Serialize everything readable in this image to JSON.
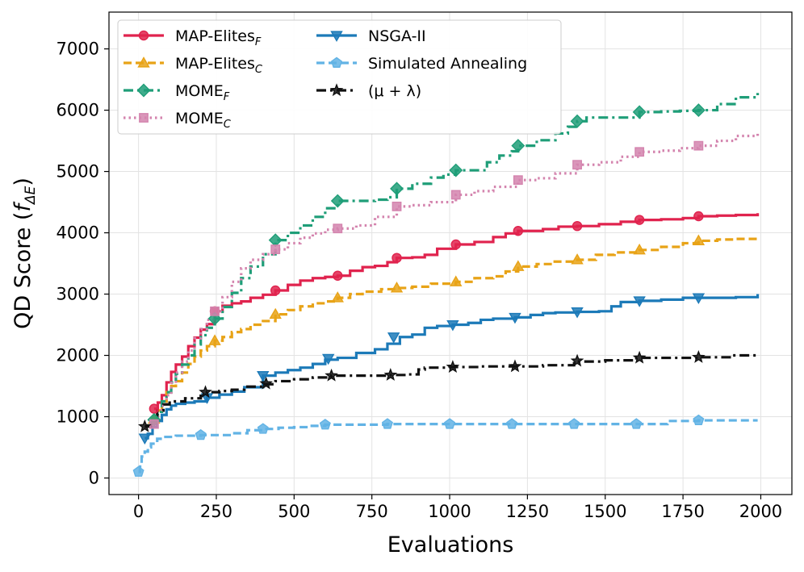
{
  "chart_data": {
    "type": "line",
    "title": "",
    "xlabel": "Evaluations",
    "ylabel_main": "QD Score (",
    "ylabel_func": "f",
    "ylabel_sub": "ΔE",
    "ylabel_close": ")",
    "xlim": [
      -95,
      2100
    ],
    "ylim": [
      -270,
      7600
    ],
    "xticks": [
      0,
      250,
      500,
      750,
      1000,
      1250,
      1500,
      1750,
      2000
    ],
    "yticks": [
      0,
      1000,
      2000,
      3000,
      4000,
      5000,
      6000,
      7000
    ],
    "grid": true,
    "legend_position": "top-left",
    "series": [
      {
        "name": "MAP-Elites",
        "name_sub": "F",
        "color": "#e0234e",
        "dash": "solid",
        "marker": "circle",
        "x": [
          50,
          62,
          75,
          90,
          105,
          120,
          140,
          160,
          180,
          200,
          220,
          245,
          270,
          300,
          330,
          360,
          400,
          440,
          480,
          520,
          560,
          600,
          640,
          680,
          720,
          760,
          800,
          830,
          880,
          920,
          960,
          1020,
          1080,
          1140,
          1180,
          1220,
          1300,
          1350,
          1410,
          1480,
          1550,
          1610,
          1680,
          1750,
          1800,
          1860,
          1920,
          1990
        ],
        "y": [
          1130,
          1230,
          1350,
          1560,
          1730,
          1850,
          1980,
          2150,
          2290,
          2420,
          2510,
          2720,
          2810,
          2850,
          2880,
          2940,
          2990,
          3060,
          3150,
          3220,
          3260,
          3280,
          3300,
          3380,
          3440,
          3460,
          3520,
          3590,
          3600,
          3640,
          3740,
          3810,
          3850,
          3930,
          3990,
          4030,
          4060,
          4100,
          4110,
          4140,
          4180,
          4210,
          4220,
          4240,
          4270,
          4280,
          4290,
          4320
        ],
        "markers_x": [
          50,
          245,
          440,
          640,
          830,
          1020,
          1220,
          1410,
          1610,
          1800
        ],
        "markers_y": [
          1130,
          2720,
          3060,
          3300,
          3590,
          3810,
          4030,
          4110,
          4210,
          4270
        ]
      },
      {
        "name": "MAP-Elites",
        "name_sub": "C",
        "color": "#e8a317",
        "dash": "dashed",
        "marker": "triangle",
        "x": [
          50,
          62,
          75,
          90,
          105,
          120,
          140,
          160,
          180,
          200,
          220,
          245,
          270,
          300,
          330,
          360,
          400,
          440,
          480,
          520,
          560,
          600,
          640,
          680,
          720,
          780,
          830,
          880,
          940,
          1020,
          1080,
          1140,
          1180,
          1220,
          1280,
          1330,
          1410,
          1470,
          1530,
          1610,
          1680,
          1750,
          1800,
          1860,
          1920,
          1990
        ],
        "y": [
          960,
          1100,
          1250,
          1400,
          1500,
          1580,
          1720,
          1860,
          1980,
          2080,
          2150,
          2240,
          2300,
          2380,
          2430,
          2500,
          2560,
          2670,
          2740,
          2800,
          2850,
          2880,
          2940,
          3000,
          3040,
          3080,
          3100,
          3120,
          3170,
          3200,
          3260,
          3290,
          3370,
          3450,
          3490,
          3530,
          3560,
          3640,
          3680,
          3720,
          3770,
          3830,
          3870,
          3890,
          3900,
          3910
        ],
        "markers_x": [
          50,
          245,
          440,
          640,
          830,
          1020,
          1220,
          1410,
          1610,
          1800
        ],
        "markers_y": [
          960,
          2240,
          2670,
          2940,
          3100,
          3200,
          3450,
          3560,
          3720,
          3870
        ]
      },
      {
        "name": "MOME",
        "name_sub": "F",
        "color": "#1f9e78",
        "dash": "dashdot",
        "marker": "diamond",
        "x": [
          50,
          62,
          75,
          90,
          105,
          120,
          140,
          160,
          180,
          200,
          220,
          245,
          270,
          300,
          330,
          360,
          400,
          440,
          480,
          520,
          560,
          600,
          640,
          700,
          760,
          800,
          830,
          880,
          940,
          980,
          1020,
          1080,
          1120,
          1160,
          1200,
          1220,
          1280,
          1340,
          1380,
          1410,
          1440,
          1500,
          1560,
          1610,
          1680,
          1740,
          1800,
          1860,
          1920,
          1990
        ],
        "y": [
          950,
          1080,
          1250,
          1400,
          1560,
          1700,
          1850,
          2000,
          2180,
          2330,
          2450,
          2600,
          2790,
          3020,
          3260,
          3450,
          3650,
          3880,
          4000,
          4120,
          4260,
          4400,
          4520,
          4520,
          4540,
          4580,
          4720,
          4800,
          4900,
          4950,
          5020,
          5020,
          5150,
          5260,
          5330,
          5420,
          5510,
          5620,
          5730,
          5820,
          5880,
          5880,
          5880,
          5970,
          5980,
          5990,
          6000,
          6100,
          6210,
          6280
        ],
        "markers_x": [
          50,
          245,
          440,
          640,
          830,
          1020,
          1220,
          1410,
          1610,
          1800
        ],
        "markers_y": [
          950,
          2600,
          3880,
          4520,
          4720,
          5020,
          5420,
          5820,
          5970,
          6000
        ]
      },
      {
        "name": "MOME",
        "name_sub": "C",
        "color": "#d484ae",
        "dash": "dotted",
        "marker": "square",
        "x": [
          50,
          62,
          75,
          90,
          105,
          120,
          140,
          160,
          180,
          200,
          220,
          245,
          270,
          300,
          330,
          360,
          400,
          440,
          480,
          520,
          560,
          600,
          640,
          700,
          760,
          830,
          880,
          940,
          1020,
          1080,
          1140,
          1220,
          1280,
          1340,
          1410,
          1480,
          1550,
          1610,
          1680,
          1740,
          1800,
          1860,
          1920,
          1990
        ],
        "y": [
          880,
          1000,
          1180,
          1350,
          1550,
          1720,
          1900,
          2080,
          2280,
          2430,
          2580,
          2720,
          2950,
          3200,
          3420,
          3560,
          3650,
          3730,
          3830,
          3920,
          3990,
          4050,
          4070,
          4120,
          4260,
          4430,
          4450,
          4500,
          4620,
          4680,
          4750,
          4860,
          4890,
          4970,
          5110,
          5150,
          5240,
          5320,
          5340,
          5380,
          5420,
          5500,
          5580,
          5660
        ],
        "markers_x": [
          50,
          245,
          440,
          640,
          830,
          1020,
          1220,
          1410,
          1610,
          1800
        ],
        "markers_y": [
          880,
          2720,
          3730,
          4070,
          4430,
          4620,
          4860,
          5110,
          5320,
          5420
        ]
      },
      {
        "name": "NSGA-II",
        "name_sub": "",
        "color": "#1c7ab8",
        "dash": "solid",
        "marker": "triangle-down",
        "x": [
          20,
          30,
          45,
          60,
          75,
          90,
          105,
          120,
          150,
          180,
          220,
          260,
          300,
          340,
          400,
          440,
          480,
          520,
          560,
          600,
          640,
          700,
          760,
          800,
          840,
          880,
          920,
          960,
          1010,
          1060,
          1100,
          1140,
          1210,
          1260,
          1300,
          1340,
          1410,
          1480,
          1520,
          1550,
          1610,
          1680,
          1750,
          1800,
          1860,
          1920,
          1990
        ],
        "y": [
          650,
          720,
          830,
          930,
          1030,
          1120,
          1180,
          1210,
          1230,
          1250,
          1310,
          1360,
          1410,
          1480,
          1670,
          1720,
          1760,
          1800,
          1860,
          1930,
          1960,
          2040,
          2100,
          2190,
          2300,
          2340,
          2450,
          2480,
          2500,
          2530,
          2580,
          2600,
          2620,
          2660,
          2690,
          2700,
          2710,
          2720,
          2800,
          2870,
          2890,
          2910,
          2940,
          2940,
          2940,
          2950,
          3000
        ],
        "markers_x": [
          20,
          220,
          400,
          610,
          820,
          1010,
          1210,
          1410,
          1610,
          1800
        ],
        "markers_y": [
          650,
          1310,
          1670,
          1950,
          2300,
          2500,
          2620,
          2710,
          2890,
          2940
        ]
      },
      {
        "name": "Simulated Annealing",
        "name_sub": "",
        "color": "#62b3e5",
        "dash": "dashed",
        "marker": "pentagon",
        "x": [
          0,
          5,
          10,
          20,
          30,
          40,
          60,
          80,
          120,
          160,
          200,
          250,
          300,
          350,
          400,
          450,
          500,
          550,
          600,
          650,
          700,
          800,
          900,
          1000,
          1100,
          1200,
          1300,
          1400,
          1500,
          1600,
          1650,
          1700,
          1800,
          1900,
          1990
        ],
        "y": [
          100,
          240,
          350,
          430,
          500,
          560,
          640,
          670,
          690,
          690,
          700,
          700,
          730,
          780,
          800,
          820,
          830,
          850,
          870,
          870,
          870,
          880,
          880,
          880,
          880,
          880,
          880,
          880,
          880,
          880,
          880,
          930,
          940,
          940,
          940
        ],
        "markers_x": [
          0,
          200,
          400,
          600,
          800,
          1000,
          1200,
          1400,
          1600,
          1800
        ],
        "markers_y": [
          100,
          700,
          800,
          870,
          880,
          880,
          880,
          880,
          880,
          940
        ]
      },
      {
        "name": "(μ + λ)",
        "name_sub": "",
        "color": "#111111",
        "dash": "dashdot",
        "marker": "star",
        "x": [
          20,
          40,
          60,
          80,
          100,
          150,
          200,
          220,
          260,
          300,
          340,
          400,
          440,
          500,
          560,
          620,
          700,
          800,
          860,
          900,
          920,
          1000,
          1100,
          1200,
          1300,
          1400,
          1500,
          1600,
          1700,
          1800,
          1900,
          1990
        ],
        "y": [
          840,
          900,
          1100,
          1200,
          1250,
          1300,
          1340,
          1400,
          1420,
          1440,
          1490,
          1530,
          1580,
          1610,
          1640,
          1670,
          1670,
          1680,
          1690,
          1770,
          1800,
          1810,
          1820,
          1820,
          1840,
          1900,
          1920,
          1960,
          1960,
          1970,
          2000,
          2010
        ],
        "markers_x": [
          20,
          215,
          410,
          620,
          810,
          1010,
          1210,
          1410,
          1610,
          1800
        ],
        "markers_y": [
          840,
          1400,
          1540,
          1670,
          1680,
          1810,
          1820,
          1910,
          1960,
          1970
        ]
      }
    ]
  }
}
